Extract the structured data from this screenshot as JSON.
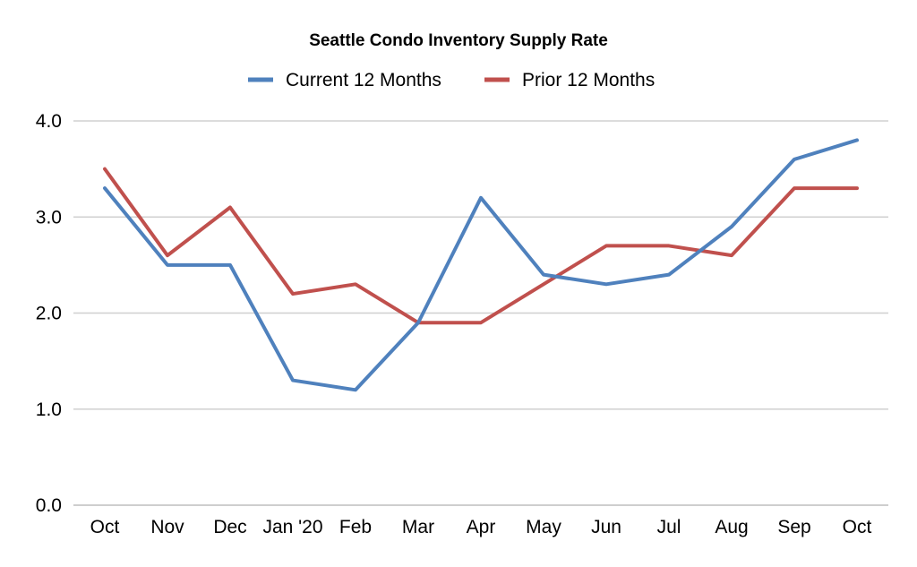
{
  "chart_data": {
    "type": "line",
    "title": "Seattle Condo Inventory Supply Rate",
    "xlabel": "",
    "ylabel": "",
    "categories": [
      "Oct",
      "Nov",
      "Dec",
      "Jan '20",
      "Feb",
      "Mar",
      "Apr",
      "May",
      "Jun",
      "Jul",
      "Aug",
      "Sep",
      "Oct"
    ],
    "ylim": [
      0,
      4
    ],
    "yticks": [
      "0.0",
      "1.0",
      "2.0",
      "3.0",
      "4.0"
    ],
    "grid": true,
    "legend_position": "top",
    "series": [
      {
        "name": "Current 12 Months",
        "color": "#4f81bd",
        "values": [
          3.3,
          2.5,
          2.5,
          1.3,
          1.2,
          1.9,
          3.2,
          2.4,
          2.3,
          2.4,
          2.9,
          3.6,
          3.8
        ]
      },
      {
        "name": "Prior 12 Months",
        "color": "#c0504d",
        "values": [
          3.5,
          2.6,
          3.1,
          2.2,
          2.3,
          1.9,
          1.9,
          2.3,
          2.7,
          2.7,
          2.6,
          3.3,
          3.3
        ]
      }
    ]
  }
}
